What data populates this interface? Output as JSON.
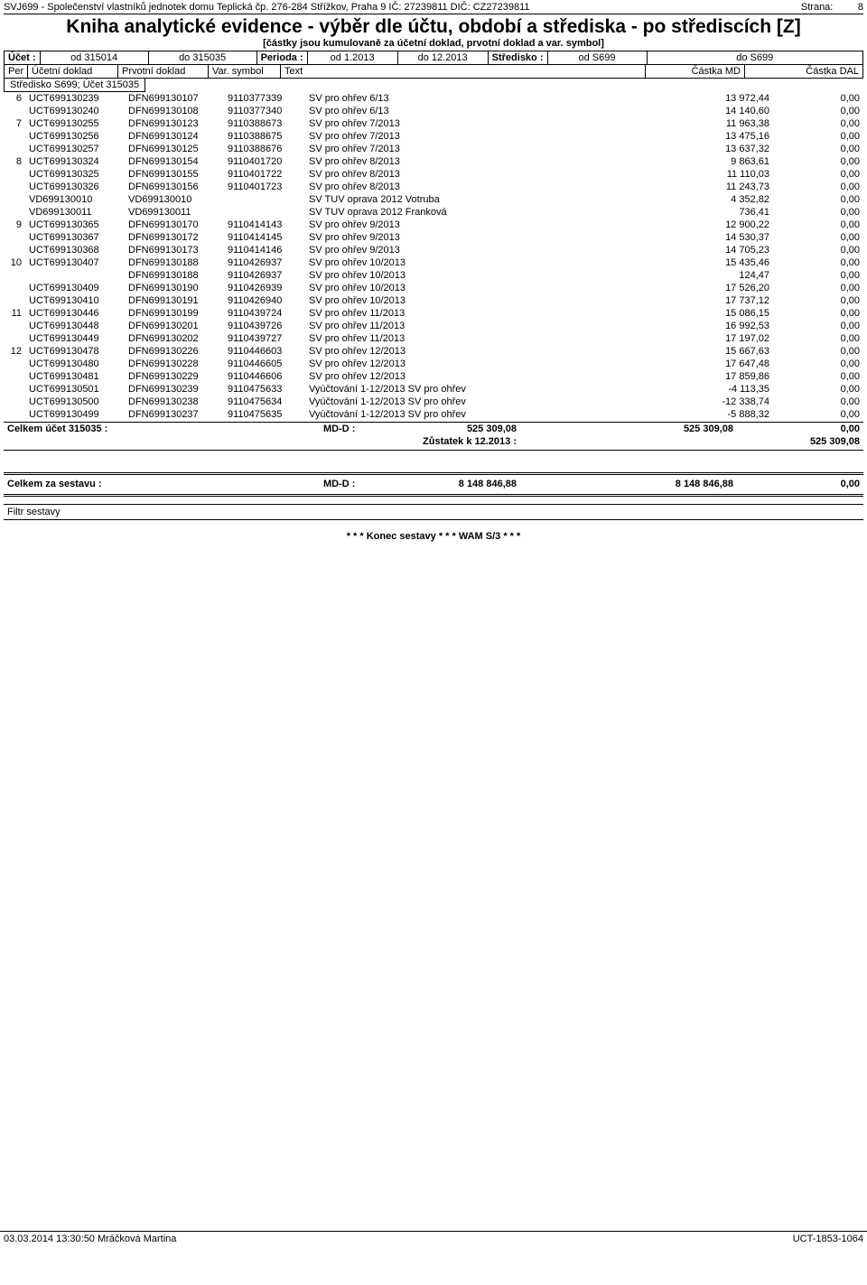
{
  "header": {
    "org": "SVJ699 - Společenství vlastníků jednotek domu Teplická čp. 276-284 Střížkov, Praha 9  IČ: 27239811  DIČ: CZ27239811",
    "page_label": "Strana:",
    "page_no": "8"
  },
  "title": "Kniha analytické evidence - výběr dle účtu, období a střediska - po střediscích [Z]",
  "subtitle": "[částky jsou kumulovaně za účetní doklad, prvotní doklad a var. symbol]",
  "filters": {
    "ucet_label": "Účet :",
    "ucet_from": "od  315014",
    "ucet_to": "do  315035",
    "perioda_label": "Perioda :",
    "perioda_from": "od 1.2013",
    "perioda_to": "do 12.2013",
    "stredisko_label": "Středisko :",
    "stredisko_from": "od  S699",
    "stredisko_to": "do  S699"
  },
  "cols": {
    "per": "Per",
    "doc1": "Účetní doklad",
    "doc2": "Prvotní doklad",
    "vs": "Var. symbol",
    "text": "Text",
    "md": "Částka MD",
    "dal": "Částka DAL"
  },
  "group_title": "Středisko S699; Účet 315035",
  "rows": [
    {
      "per": "6",
      "doc1": "UCT699130239",
      "doc2": "DFN699130107",
      "vs": "9110377339",
      "text": "SV pro ohřev  6/13",
      "md": "13 972,44",
      "dal": "0,00"
    },
    {
      "per": "",
      "doc1": "UCT699130240",
      "doc2": "DFN699130108",
      "vs": "9110377340",
      "text": "SV pro ohřev  6/13",
      "md": "14 140,60",
      "dal": "0,00"
    },
    {
      "per": "7",
      "doc1": "UCT699130255",
      "doc2": "DFN699130123",
      "vs": "9110388673",
      "text": "SV pro ohřev  7/2013",
      "md": "11 963,38",
      "dal": "0,00"
    },
    {
      "per": "",
      "doc1": "UCT699130256",
      "doc2": "DFN699130124",
      "vs": "9110388675",
      "text": "SV pro ohřev  7/2013",
      "md": "13 475,16",
      "dal": "0,00"
    },
    {
      "per": "",
      "doc1": "UCT699130257",
      "doc2": "DFN699130125",
      "vs": "9110388676",
      "text": "SV pro ohřev  7/2013",
      "md": "13 637,32",
      "dal": "0,00"
    },
    {
      "per": "8",
      "doc1": "UCT699130324",
      "doc2": "DFN699130154",
      "vs": "9110401720",
      "text": "SV pro ohřev  8/2013",
      "md": "9 863,61",
      "dal": "0,00"
    },
    {
      "per": "",
      "doc1": "UCT699130325",
      "doc2": "DFN699130155",
      "vs": "9110401722",
      "text": "SV pro ohřev  8/2013",
      "md": "11 110,03",
      "dal": "0,00"
    },
    {
      "per": "",
      "doc1": "UCT699130326",
      "doc2": "DFN699130156",
      "vs": "9110401723",
      "text": "SV pro ohřev  8/2013",
      "md": "11 243,73",
      "dal": "0,00"
    },
    {
      "per": "",
      "doc1": "VD699130010",
      "doc2": "VD699130010",
      "vs": "",
      "text": "SV TUV oprava 2012 Votruba",
      "md": "4 352,82",
      "dal": "0,00"
    },
    {
      "per": "",
      "doc1": "VD699130011",
      "doc2": "VD699130011",
      "vs": "",
      "text": "SV TUV oprava 2012 Franková",
      "md": "736,41",
      "dal": "0,00"
    },
    {
      "per": "9",
      "doc1": "UCT699130365",
      "doc2": "DFN699130170",
      "vs": "9110414143",
      "text": "SV pro ohřev  9/2013",
      "md": "12 900,22",
      "dal": "0,00"
    },
    {
      "per": "",
      "doc1": "UCT699130367",
      "doc2": "DFN699130172",
      "vs": "9110414145",
      "text": "SV pro ohřev  9/2013",
      "md": "14 530,37",
      "dal": "0,00"
    },
    {
      "per": "",
      "doc1": "UCT699130368",
      "doc2": "DFN699130173",
      "vs": "9110414146",
      "text": "SV pro ohřev  9/2013",
      "md": "14 705,23",
      "dal": "0,00"
    },
    {
      "per": "10",
      "doc1": "UCT699130407",
      "doc2": "DFN699130188",
      "vs": "9110426937",
      "text": "SV  pro ohřev 10/2013",
      "md": "15 435,46",
      "dal": "0,00"
    },
    {
      "per": "",
      "doc1": "",
      "doc2": "DFN699130188",
      "vs": "9110426937",
      "text": "SV pro ohřev 10/2013",
      "md": "124,47",
      "dal": "0,00"
    },
    {
      "per": "",
      "doc1": "UCT699130409",
      "doc2": "DFN699130190",
      "vs": "9110426939",
      "text": "SV pro ohřev 10/2013",
      "md": "17 526,20",
      "dal": "0,00"
    },
    {
      "per": "",
      "doc1": "UCT699130410",
      "doc2": "DFN699130191",
      "vs": "9110426940",
      "text": "SV pro ohřev 10/2013",
      "md": "17 737,12",
      "dal": "0,00"
    },
    {
      "per": "11",
      "doc1": "UCT699130446",
      "doc2": "DFN699130199",
      "vs": "9110439724",
      "text": "SV pro ohřev 11/2013",
      "md": "15 086,15",
      "dal": "0,00"
    },
    {
      "per": "",
      "doc1": "UCT699130448",
      "doc2": "DFN699130201",
      "vs": "9110439726",
      "text": "SV pro ohřev 11/2013",
      "md": "16 992,53",
      "dal": "0,00"
    },
    {
      "per": "",
      "doc1": "UCT699130449",
      "doc2": "DFN699130202",
      "vs": "9110439727",
      "text": "SV pro ohřev 11/2013",
      "md": "17 197,02",
      "dal": "0,00"
    },
    {
      "per": "12",
      "doc1": "UCT699130478",
      "doc2": "DFN699130226",
      "vs": "9110446603",
      "text": "SV pro ohřev 12/2013",
      "md": "15 667,63",
      "dal": "0,00"
    },
    {
      "per": "",
      "doc1": "UCT699130480",
      "doc2": "DFN699130228",
      "vs": "9110446605",
      "text": "SV pro ohřev 12/2013",
      "md": "17 647,48",
      "dal": "0,00"
    },
    {
      "per": "",
      "doc1": "UCT699130481",
      "doc2": "DFN699130229",
      "vs": "9110446606",
      "text": "SV pro ohřev 12/2013",
      "md": "17 859,86",
      "dal": "0,00"
    },
    {
      "per": "",
      "doc1": "UCT699130501",
      "doc2": "DFN699130239",
      "vs": "9110475633",
      "text": "Vyúčtování 1-12/2013 SV pro ohřev",
      "md": "-4 113,35",
      "dal": "0,00"
    },
    {
      "per": "",
      "doc1": "UCT699130500",
      "doc2": "DFN699130238",
      "vs": "9110475634",
      "text": "Vyúčtování 1-12/2013 SV pro ohřev",
      "md": "-12 338,74",
      "dal": "0,00"
    },
    {
      "per": "",
      "doc1": "UCT699130499",
      "doc2": "DFN699130237",
      "vs": "9110475635",
      "text": "Vyúčtování 1-12/2013 SV pro ohřev",
      "md": "-5 888,32",
      "dal": "0,00"
    }
  ],
  "totals": {
    "account_label": "Celkem účet 315035 :",
    "mdd_label": "MD-D :",
    "mdd_value": "525 309,08",
    "md_sum": "525 309,08",
    "dal_sum": "0,00",
    "balance_label": "Zůstatek k  12.2013 :",
    "balance_value": "525 309,08"
  },
  "grand": {
    "label": "Celkem za sestavu :",
    "mdd_label": "MD-D :",
    "mdd_value": "8 148 846,88",
    "md_sum": "8 148 846,88",
    "dal_sum": "0,00"
  },
  "filter_section": "Filtr sestavy",
  "end_line": "* * * Konec sestavy  * * *  WAM S/3  * * *",
  "footer": {
    "left": "03.03.2014 13:30:50   Mráčková Martina",
    "right": "UCT-1853-1064"
  }
}
